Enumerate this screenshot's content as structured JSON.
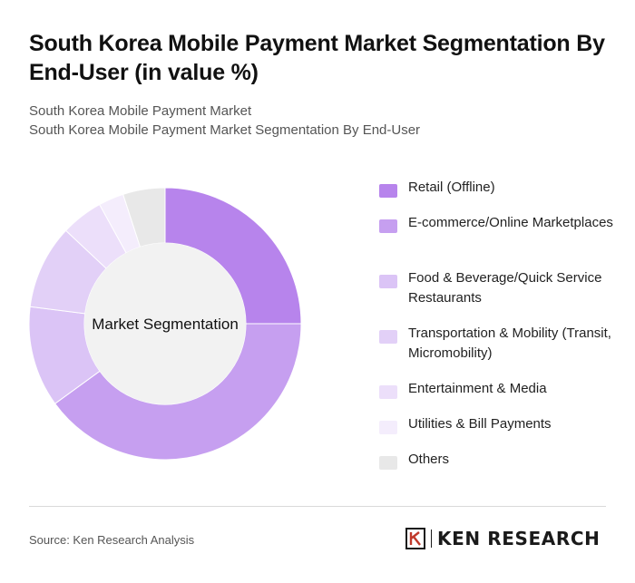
{
  "header": {
    "title": "South Korea Mobile Payment Market Segmentation By End-User (in value %)",
    "subtitle_line1": "South Korea Mobile Payment Market",
    "subtitle_line2": "South Korea Mobile Payment Market Segmentation By End-User"
  },
  "chart_data": {
    "type": "pie",
    "title": "",
    "center_label": "Market Segmentation",
    "categories": [
      "Retail (Offline)",
      "E-commerce/Online Marketplaces",
      "Food & Beverage/Quick Service Restaurants",
      "Transportation & Mobility (Transit, Micromobility)",
      "Entertainment & Media",
      "Utilities & Bill Payments",
      "Others"
    ],
    "values": [
      25,
      40,
      12,
      10,
      5,
      3,
      5
    ],
    "colors": [
      "#b784ec",
      "#c69ff0",
      "#dbc4f6",
      "#e2d0f7",
      "#ecdffa",
      "#f4edfc",
      "#e8e8e8"
    ],
    "legend_position": "right"
  },
  "legend": {
    "items": [
      {
        "label": "Retail (Offline)",
        "color": "#b784ec"
      },
      {
        "label": "E-commerce/Online Marketplaces",
        "color": "#c69ff0"
      },
      {
        "label": "Food & Beverage/Quick Service Restaurants",
        "color": "#dbc4f6"
      },
      {
        "label": "Transportation & Mobility (Transit, Micromobility)",
        "color": "#e2d0f7"
      },
      {
        "label": "Entertainment & Media",
        "color": "#ecdffa"
      },
      {
        "label": "Utilities & Bill Payments",
        "color": "#f4edfc"
      },
      {
        "label": "Others",
        "color": "#e8e8e8"
      }
    ]
  },
  "footer": {
    "source": "Source: Ken Research Analysis",
    "brand": "KEN RESEARCH",
    "brand_icon": "ken-research-logo-icon"
  }
}
